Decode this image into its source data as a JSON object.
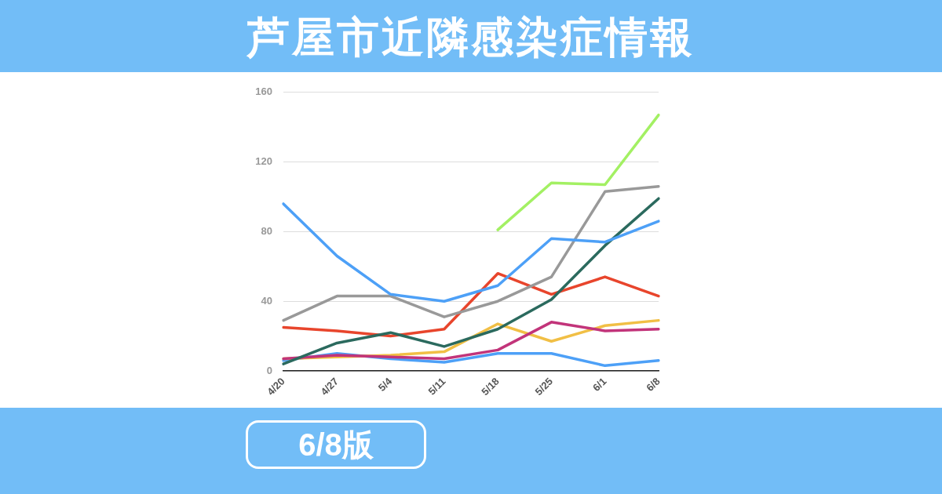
{
  "chart_data": {
    "type": "line",
    "title": "芦屋市近隣感染症情報",
    "annotations": [
      "6/8版"
    ],
    "categories": [
      "4/20",
      "4/27",
      "5/4",
      "5/11",
      "5/18",
      "5/25",
      "6/1",
      "6/8"
    ],
    "series": [
      {
        "color": "#4da0f7",
        "values": [
          96,
          66,
          44,
          40,
          49,
          76,
          74,
          86
        ]
      },
      {
        "color": "#a3f063",
        "values": [
          null,
          null,
          null,
          null,
          81,
          108,
          107,
          147
        ]
      },
      {
        "color": "#999999",
        "values": [
          29,
          43,
          43,
          31,
          40,
          54,
          103,
          106
        ]
      },
      {
        "color": "#2b6a5e",
        "values": [
          4,
          16,
          22,
          14,
          24,
          41,
          72,
          99
        ]
      },
      {
        "color": "#e8452c",
        "values": [
          25,
          23,
          20,
          24,
          56,
          44,
          54,
          43
        ]
      },
      {
        "color": "#c2347a",
        "values": [
          7,
          9,
          8,
          7,
          12,
          28,
          23,
          24
        ]
      },
      {
        "color": "#f1bf45",
        "values": [
          7,
          8,
          9,
          11,
          27,
          17,
          26,
          29
        ]
      },
      {
        "color": "#4da0f7",
        "values": [
          6,
          10,
          7,
          5,
          10,
          10,
          3,
          6
        ]
      }
    ],
    "ylim": [
      0,
      160
    ],
    "yticks": [
      0,
      40,
      80,
      120,
      160
    ],
    "grid": "y",
    "legend": false,
    "marker": "none",
    "line_style": "solid"
  }
}
